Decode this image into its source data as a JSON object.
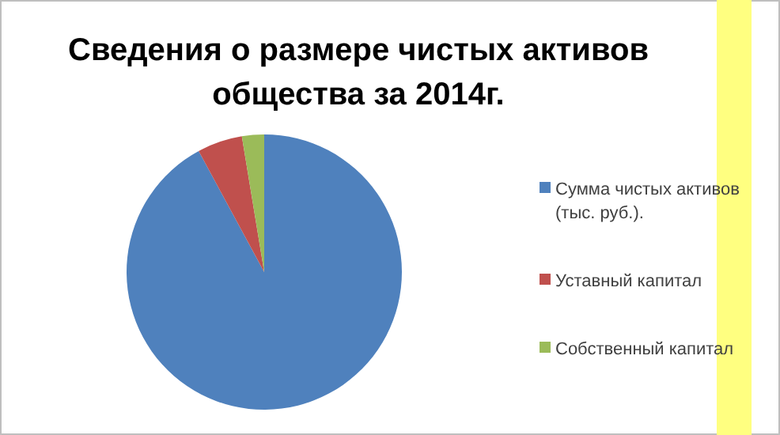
{
  "chart_data": {
    "type": "pie",
    "title": "Сведения о размере чистых активов общества за 2014г.",
    "categories": [
      "Сумма чистых активов (тыс. руб.).",
      "Уставный капитал",
      "Собственный капитал"
    ],
    "values": [
      92.1,
      5.3,
      2.6
    ],
    "colors": [
      "#4f81bd",
      "#c0504d",
      "#9bbb59"
    ],
    "legend": "right"
  }
}
